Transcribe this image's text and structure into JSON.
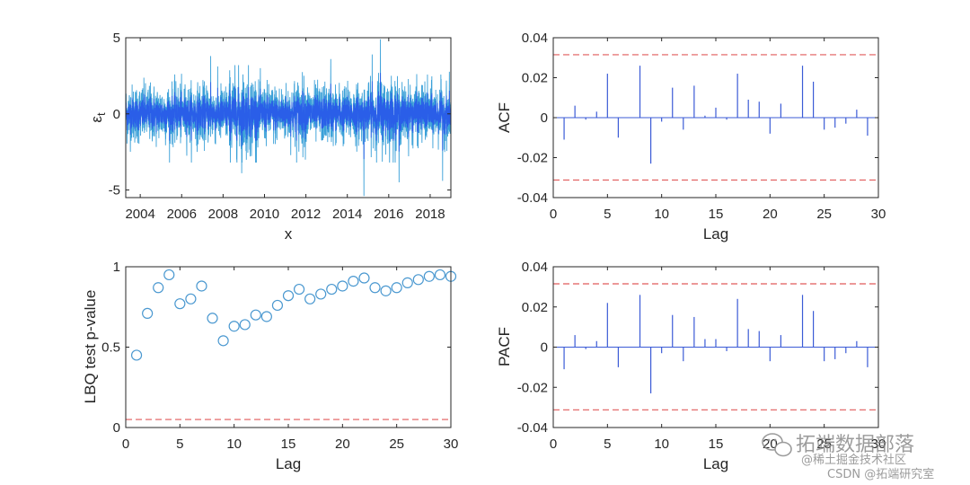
{
  "colors": {
    "residual_line": "#2a5ee8",
    "residual_line_light": "#3aa0d8",
    "stem": "#3b5bd6",
    "bound": "#e05a5a",
    "marker": "#4a98d0",
    "axis": "#262626"
  },
  "watermark": {
    "brand": "拓端数据部落",
    "line2": "@稀土掘金技术社区",
    "line3": "CSDN @拓端研究室"
  },
  "chart_data": [
    {
      "id": "residuals",
      "type": "line",
      "title": "",
      "xlabel": "x",
      "ylabel": "ε_t",
      "ylabel_main": "ε",
      "ylabel_sub": "t",
      "xlim": [
        2003.3,
        2019.0
      ],
      "ylim": [
        -5.5,
        5
      ],
      "xticks": [
        2004,
        2006,
        2008,
        2010,
        2012,
        2014,
        2016,
        2018
      ],
      "xtick_labels": [
        "2004",
        "2006",
        "2008",
        "2010",
        "2012",
        "2014",
        "2016",
        "2018"
      ],
      "yticks": [
        -5,
        0,
        5
      ],
      "ytick_labels": [
        "-5",
        "0",
        "5"
      ],
      "spikes": [
        {
          "x": 2014.8,
          "y": -5.4
        },
        {
          "x": 2015.6,
          "y": 4.9
        },
        {
          "x": 2016.5,
          "y": -4.5
        },
        {
          "x": 2018.6,
          "y": -4.4
        },
        {
          "x": 2008.9,
          "y": -3.9
        },
        {
          "x": 2007.4,
          "y": 3.8
        },
        {
          "x": 2015.2,
          "y": 3.9
        },
        {
          "x": 2013.2,
          "y": 3.6
        }
      ]
    },
    {
      "id": "acf",
      "type": "stem",
      "xlabel": "Lag",
      "ylabel": "ACF",
      "xlim": [
        0,
        30
      ],
      "ylim": [
        -0.04,
        0.04
      ],
      "xticks": [
        0,
        5,
        10,
        15,
        20,
        25,
        30
      ],
      "xtick_labels": [
        "0",
        "5",
        "10",
        "15",
        "20",
        "25",
        "30"
      ],
      "yticks": [
        -0.04,
        -0.02,
        0,
        0.02,
        0.04
      ],
      "ytick_labels": [
        "-0.04",
        "-0.02",
        "0",
        "0.02",
        "0.04"
      ],
      "bounds": [
        0.0315,
        -0.0312
      ],
      "lags": [
        1,
        2,
        3,
        4,
        5,
        6,
        7,
        8,
        9,
        10,
        11,
        12,
        13,
        14,
        15,
        16,
        17,
        18,
        19,
        20,
        21,
        22,
        23,
        24,
        25,
        26,
        27,
        28,
        29
      ],
      "values": [
        -0.011,
        0.006,
        -0.001,
        0.003,
        0.022,
        -0.01,
        0.0,
        0.026,
        -0.023,
        -0.002,
        0.015,
        -0.006,
        0.016,
        0.001,
        0.005,
        -0.001,
        0.022,
        0.009,
        0.008,
        -0.008,
        0.007,
        0.0,
        0.026,
        0.018,
        -0.006,
        -0.005,
        -0.003,
        0.004,
        -0.009
      ]
    },
    {
      "id": "lbq",
      "type": "scatter",
      "xlabel": "Lag",
      "ylabel": "LBQ test p-value",
      "xlim": [
        0,
        30
      ],
      "ylim": [
        0,
        1
      ],
      "xticks": [
        0,
        5,
        10,
        15,
        20,
        25,
        30
      ],
      "xtick_labels": [
        "0",
        "5",
        "10",
        "15",
        "20",
        "25",
        "30"
      ],
      "yticks": [
        0,
        0.5,
        1
      ],
      "ytick_labels": [
        "0",
        "0.5",
        "1"
      ],
      "threshold": 0.05,
      "x": [
        1,
        2,
        3,
        4,
        5,
        6,
        7,
        8,
        9,
        10,
        11,
        12,
        13,
        14,
        15,
        16,
        17,
        18,
        19,
        20,
        21,
        22,
        23,
        24,
        25,
        26,
        27,
        28,
        29,
        30
      ],
      "y": [
        0.45,
        0.71,
        0.87,
        0.95,
        0.77,
        0.8,
        0.88,
        0.68,
        0.54,
        0.63,
        0.64,
        0.7,
        0.69,
        0.76,
        0.82,
        0.86,
        0.8,
        0.83,
        0.86,
        0.88,
        0.91,
        0.93,
        0.87,
        0.85,
        0.87,
        0.9,
        0.92,
        0.94,
        0.95,
        0.94
      ]
    },
    {
      "id": "pacf",
      "type": "stem",
      "xlabel": "Lag",
      "ylabel": "PACF",
      "xlim": [
        0,
        30
      ],
      "ylim": [
        -0.04,
        0.04
      ],
      "xticks": [
        0,
        5,
        10,
        15,
        20,
        25,
        30
      ],
      "xtick_labels": [
        "0",
        "5",
        "10",
        "15",
        "20",
        "25",
        "30"
      ],
      "yticks": [
        -0.04,
        -0.02,
        0,
        0.02,
        0.04
      ],
      "ytick_labels": [
        "-0.04",
        "-0.02",
        "0",
        "0.02",
        "0.04"
      ],
      "bounds": [
        0.0315,
        -0.0312
      ],
      "lags": [
        1,
        2,
        3,
        4,
        5,
        6,
        7,
        8,
        9,
        10,
        11,
        12,
        13,
        14,
        15,
        16,
        17,
        18,
        19,
        20,
        21,
        22,
        23,
        24,
        25,
        26,
        27,
        28,
        29
      ],
      "values": [
        -0.011,
        0.006,
        -0.001,
        0.003,
        0.022,
        -0.01,
        0.0,
        0.026,
        -0.023,
        -0.003,
        0.016,
        -0.007,
        0.015,
        0.004,
        0.004,
        -0.002,
        0.024,
        0.009,
        0.008,
        -0.007,
        0.006,
        0.0,
        0.026,
        0.018,
        -0.007,
        -0.006,
        -0.003,
        0.003,
        -0.01
      ]
    }
  ]
}
